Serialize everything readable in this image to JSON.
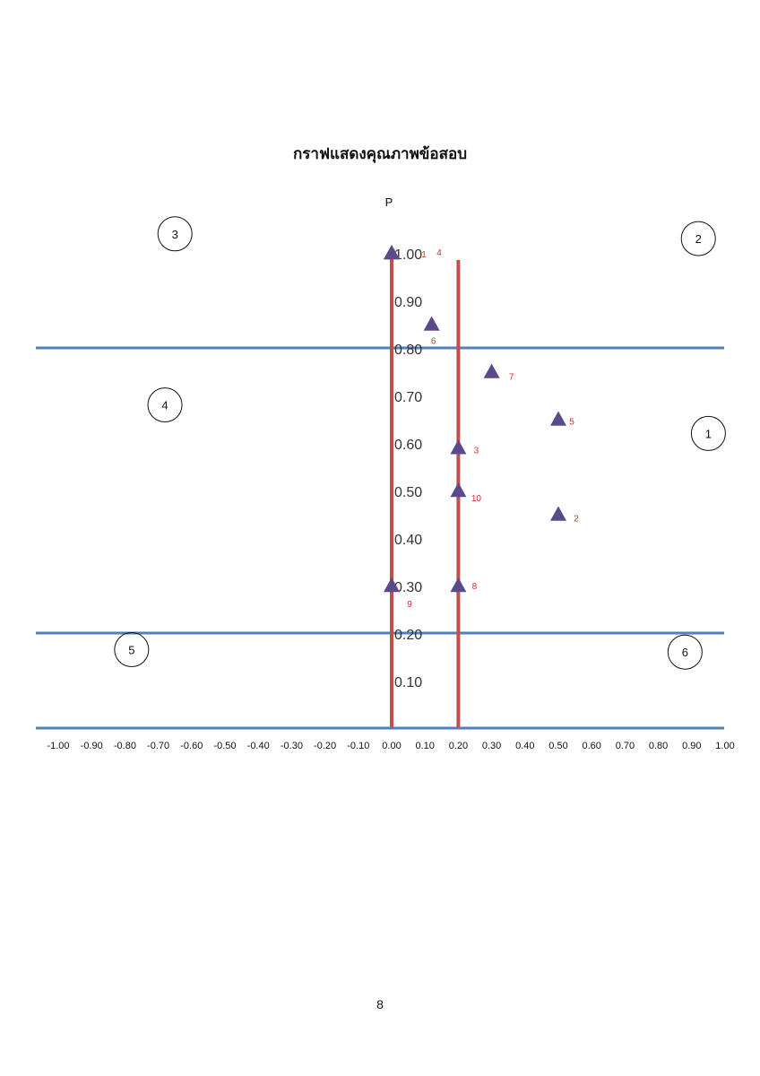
{
  "chart_data": {
    "type": "scatter",
    "title": "กราฟแสดงคุณภาพข้อสอบ",
    "ylabel": "P",
    "xlabel": "",
    "xlim": [
      -1.0,
      1.0
    ],
    "ylim": [
      0,
      1.0
    ],
    "x_ticks": [
      "-1.00",
      "-0.90",
      "-0.80",
      "-0.70",
      "-0.60",
      "-0.50",
      "-0.40",
      "-0.30",
      "-0.20",
      "-0.10",
      "0.00",
      "0.10",
      "0.20",
      "0.30",
      "0.40",
      "0.50",
      "0.60",
      "0.70",
      "0.80",
      "0.90",
      "1.00"
    ],
    "y_ticks": [
      "0.10",
      "0.20",
      "0.30",
      "0.40",
      "0.50",
      "0.60",
      "0.70",
      "0.80",
      "0.90",
      "1.00"
    ],
    "grid": false,
    "legend": false,
    "points": [
      {
        "label": "1",
        "x": 0.0,
        "y": 1.0
      },
      {
        "label": "2",
        "x": 0.5,
        "y": 0.45
      },
      {
        "label": "3",
        "x": 0.2,
        "y": 0.59
      },
      {
        "label": "4",
        "x": 0.0,
        "y": 1.0
      },
      {
        "label": "5",
        "x": 0.5,
        "y": 0.65
      },
      {
        "label": "6",
        "x": 0.12,
        "y": 0.85
      },
      {
        "label": "7",
        "x": 0.3,
        "y": 0.75
      },
      {
        "label": "8",
        "x": 0.2,
        "y": 0.3
      },
      {
        "label": "9",
        "x": 0.0,
        "y": 0.3
      },
      {
        "label": "10",
        "x": 0.2,
        "y": 0.5
      }
    ],
    "horizontal_lines": [
      0.8,
      0.2,
      0.0
    ],
    "vertical_lines": [
      0.0,
      0.2
    ],
    "regions": [
      {
        "label": "1",
        "x": 0.95,
        "y": 0.62
      },
      {
        "label": "2",
        "x": 0.92,
        "y": 1.03
      },
      {
        "label": "3",
        "x": -0.65,
        "y": 1.04
      },
      {
        "label": "4",
        "x": -0.68,
        "y": 0.68
      },
      {
        "label": "5",
        "x": -0.78,
        "y": 0.165
      },
      {
        "label": "6",
        "x": 0.88,
        "y": 0.16
      }
    ],
    "colors": {
      "marker": "#5b4a8a",
      "vertical_line": "#c0504d",
      "horizontal_line": "#4f81bd",
      "point_label": "#d03030"
    }
  },
  "page_number": "8"
}
